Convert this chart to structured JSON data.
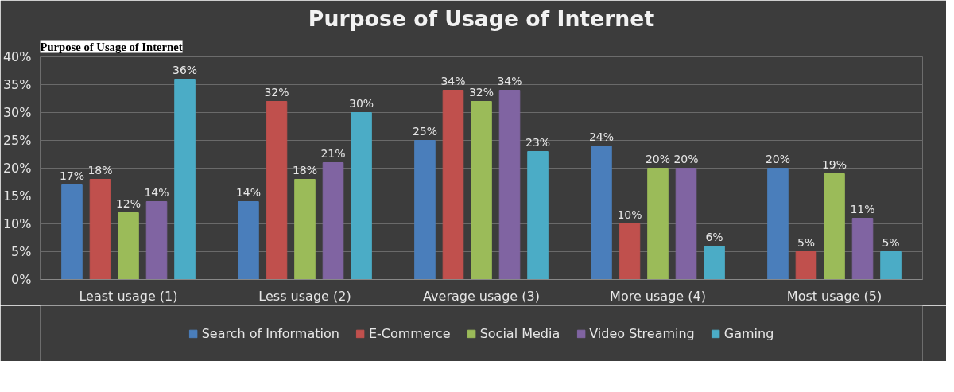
{
  "chart_data": {
    "type": "bar",
    "title": "Purpose of Usage of Internet",
    "annotations": [
      "Purpose of Usage of Internet"
    ],
    "categories": [
      "Least usage (1)",
      "Less usage (2)",
      "Average usage (3)",
      "More usage (4)",
      "Most usage (5)"
    ],
    "series": [
      {
        "name": "Search of Information",
        "color": "#4a7ebb",
        "values": [
          17,
          14,
          25,
          24,
          20
        ],
        "value_labels": [
          "17%",
          "14%",
          "25%",
          "24%",
          "20%"
        ]
      },
      {
        "name": "E-Commerce",
        "color": "#c0504d",
        "values": [
          18,
          32,
          34,
          10,
          5
        ],
        "value_labels": [
          "18%",
          "32%",
          "34%",
          "10%",
          "5%"
        ]
      },
      {
        "name": "Social Media",
        "color": "#9bbb59",
        "values": [
          12,
          18,
          32,
          20,
          19
        ],
        "value_labels": [
          "12%",
          "18%",
          "32%",
          "20%",
          "19%"
        ]
      },
      {
        "name": "Video Streaming",
        "color": "#8064a2",
        "values": [
          14,
          21,
          34,
          20,
          11
        ],
        "value_labels": [
          "14%",
          "21%",
          "34%",
          "20%",
          "11%"
        ]
      },
      {
        "name": "Gaming",
        "color": "#4bacc6",
        "values": [
          36,
          30,
          23,
          6,
          5
        ],
        "value_labels": [
          "36%",
          "30%",
          "23%",
          "6%",
          "5%"
        ]
      }
    ],
    "ylim": [
      0,
      40
    ],
    "yticks": [
      {
        "value": 0,
        "label": "0%"
      },
      {
        "value": 5,
        "label": "5%"
      },
      {
        "value": 10,
        "label": "10%"
      },
      {
        "value": 15,
        "label": "15%"
      },
      {
        "value": 20,
        "label": "20%"
      },
      {
        "value": 25,
        "label": "25%"
      },
      {
        "value": 30,
        "label": "30%"
      },
      {
        "value": 35,
        "label": "35%"
      },
      {
        "value": 40,
        "label": "40%"
      }
    ],
    "data_labels": true,
    "grid": "y",
    "legend": "bottom"
  }
}
